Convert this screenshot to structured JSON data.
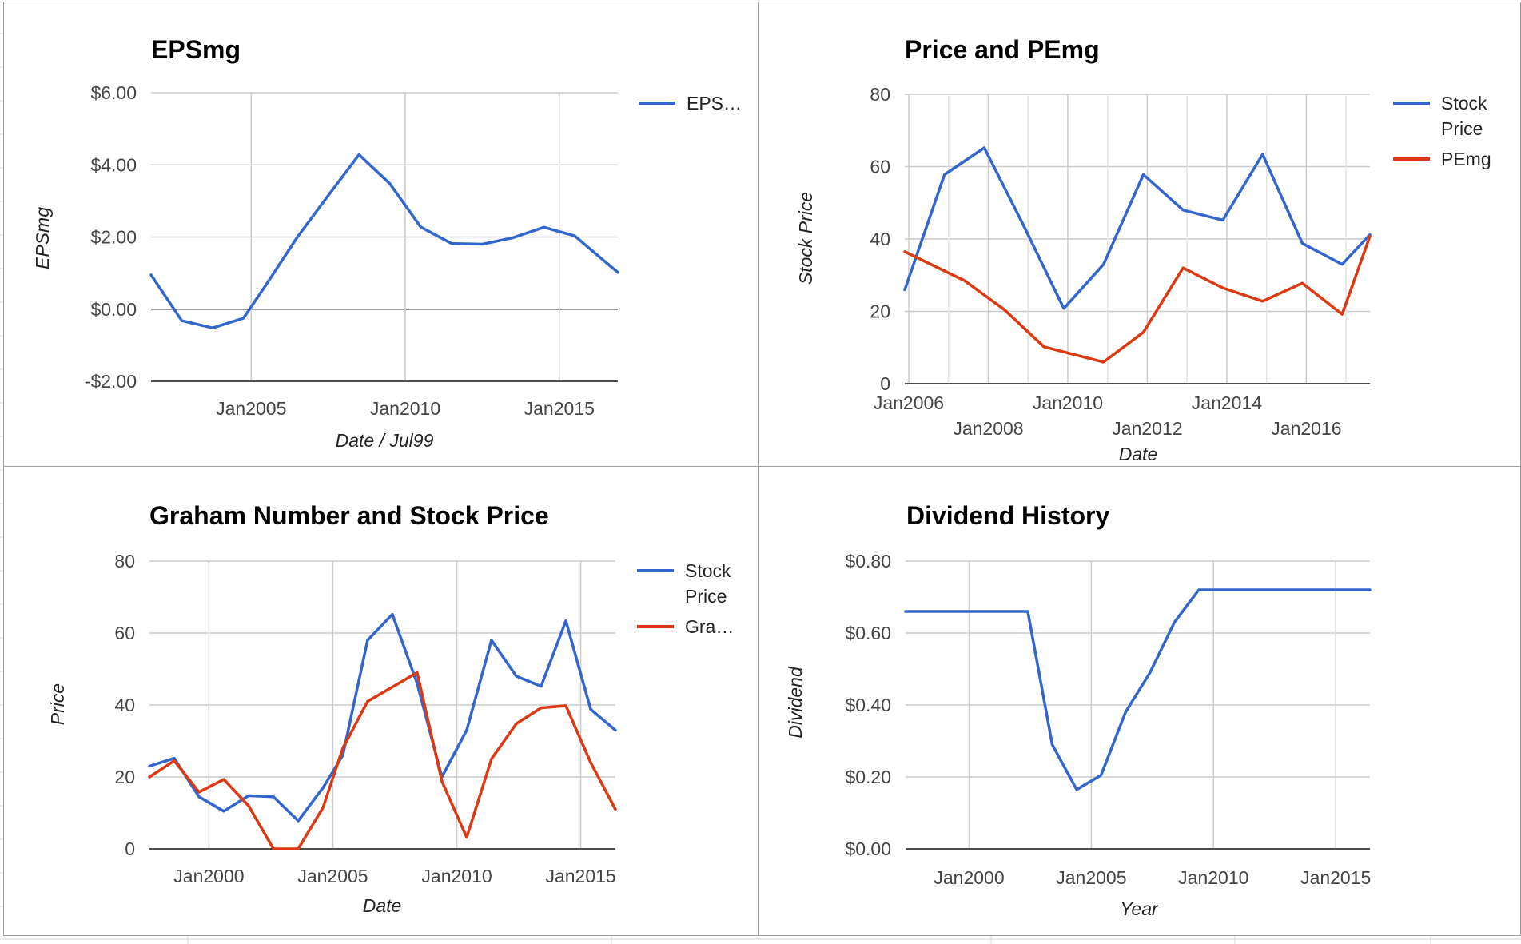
{
  "colors": {
    "blue": "#3366cc",
    "red": "#dc3912",
    "grid": "#cccccc",
    "baseline": "#333333"
  },
  "chart_data": [
    {
      "id": "epsmg",
      "type": "line",
      "title": "EPSmg",
      "xlabel": "Date / Jul99",
      "ylabel": "EPSmg",
      "xlim": [
        2001.75,
        2016.9
      ],
      "ylim": [
        -2,
        6
      ],
      "yticks": [
        -2,
        0,
        2,
        4,
        6
      ],
      "ytick_labels": [
        "-$2.00",
        "$0.00",
        "$2.00",
        "$4.00",
        "$6.00"
      ],
      "xticks": [
        {
          "label": "Jan2005",
          "value": 2005.0
        },
        {
          "label": "Jan2010",
          "value": 2010.0
        },
        {
          "label": "Jan2015",
          "value": 2015.0
        }
      ],
      "grid": true,
      "legend_position": "right",
      "series": [
        {
          "name": "EPS…",
          "color": "#3366cc",
          "x": [
            2001.75,
            2002.75,
            2003.75,
            2004.75,
            2005.5,
            2006.5,
            2007.5,
            2008.5,
            2009.5,
            2010.5,
            2011.5,
            2012.5,
            2013.5,
            2014.5,
            2015.5,
            2016.3,
            2016.9
          ],
          "y": [
            0.95,
            -0.32,
            -0.52,
            -0.25,
            0.7,
            2.0,
            3.15,
            4.28,
            3.48,
            2.28,
            1.82,
            1.8,
            1.98,
            2.27,
            2.03,
            1.45,
            1.02
          ]
        }
      ]
    },
    {
      "id": "price-pemg",
      "type": "line",
      "title": "Price and PEmg",
      "xlabel": "Date",
      "ylabel": "Stock Price",
      "xlim": [
        2005.9,
        2017.6
      ],
      "ylim": [
        0,
        80
      ],
      "yticks": [
        0,
        20,
        40,
        60,
        80
      ],
      "ytick_labels": [
        "0",
        "20",
        "40",
        "60",
        "80"
      ],
      "xticks": [
        {
          "label": "Jan2006",
          "value": 2006.0,
          "row": 0
        },
        {
          "label": "Jan2008",
          "value": 2008.0,
          "row": 1
        },
        {
          "label": "Jan2010",
          "value": 2010.0,
          "row": 0
        },
        {
          "label": "Jan2012",
          "value": 2012.0,
          "row": 1
        },
        {
          "label": "Jan2014",
          "value": 2014.0,
          "row": 0
        },
        {
          "label": "Jan2016",
          "value": 2016.0,
          "row": 1
        }
      ],
      "grid": true,
      "legend_position": "right",
      "series": [
        {
          "name": "Stock Price",
          "name_lines": [
            "Stock",
            "Price"
          ],
          "color": "#3366cc",
          "x": [
            2005.9,
            2006.9,
            2007.9,
            2008.9,
            2009.9,
            2010.9,
            2011.9,
            2012.9,
            2013.9,
            2014.9,
            2015.9,
            2016.9,
            2017.6
          ],
          "y": [
            26,
            57.8,
            65.2,
            43.5,
            20.8,
            33,
            57.8,
            48,
            45.2,
            63.4,
            38.8,
            33,
            41.2
          ]
        },
        {
          "name": "PEmg",
          "name_lines": [
            "PEmg"
          ],
          "color": "#dc3912",
          "x": [
            2005.9,
            2007.4,
            2008.4,
            2009.4,
            2010.9,
            2011.9,
            2012.9,
            2013.9,
            2014.9,
            2015.9,
            2016.9,
            2017.6
          ],
          "y": [
            36.5,
            28.5,
            20.5,
            10.2,
            6,
            14.2,
            32,
            26.5,
            22.8,
            27.8,
            19.2,
            40.8
          ]
        }
      ]
    },
    {
      "id": "graham",
      "type": "line",
      "title": "Graham Number and Stock Price",
      "xlabel": "Date",
      "ylabel": "Price",
      "xlim": [
        1997.6,
        2016.4
      ],
      "ylim": [
        0,
        80
      ],
      "yticks": [
        0,
        20,
        40,
        60,
        80
      ],
      "ytick_labels": [
        "0",
        "20",
        "40",
        "60",
        "80"
      ],
      "xticks": [
        {
          "label": "Jan2000",
          "value": 2000.0
        },
        {
          "label": "Jan2005",
          "value": 2005.0
        },
        {
          "label": "Jan2010",
          "value": 2010.0
        },
        {
          "label": "Jan2015",
          "value": 2015.0
        }
      ],
      "grid": true,
      "legend_position": "right",
      "series": [
        {
          "name": "Stock Price",
          "name_lines": [
            "Stock",
            "Price"
          ],
          "color": "#3366cc",
          "x": [
            1997.6,
            1998.6,
            1999.6,
            2000.6,
            2001.6,
            2002.6,
            2003.6,
            2004.6,
            2005.4,
            2006.4,
            2007.4,
            2008.4,
            2009.4,
            2010.4,
            2011.4,
            2012.4,
            2013.4,
            2014.4,
            2015.4,
            2016.4
          ],
          "y": [
            23,
            25.2,
            14.5,
            10.5,
            14.8,
            14.5,
            7.8,
            17,
            26,
            58,
            65.2,
            46,
            20,
            33,
            58,
            48,
            45.2,
            63.4,
            38.8,
            33
          ]
        },
        {
          "name": "Gra…",
          "name_lines": [
            "Gra…"
          ],
          "color": "#dc3912",
          "x": [
            1997.6,
            1998.6,
            1999.6,
            2000.6,
            2001.6,
            2002.6,
            2003.6,
            2004.6,
            2005.4,
            2006.4,
            2007.4,
            2008.4,
            2009.4,
            2010.4,
            2011.4,
            2012.4,
            2013.4,
            2014.4,
            2015.4,
            2016.4
          ],
          "y": [
            20,
            24.5,
            15.8,
            19.3,
            12,
            0,
            0,
            11.5,
            28,
            41,
            45,
            49,
            18.8,
            3.2,
            25,
            34.8,
            39.2,
            39.8,
            24,
            11
          ]
        }
      ]
    },
    {
      "id": "dividend",
      "type": "line",
      "title": "Dividend History",
      "xlabel": "Year",
      "ylabel": "Dividend",
      "xlim": [
        1997.4,
        2016.4
      ],
      "ylim": [
        0,
        0.8
      ],
      "yticks": [
        0,
        0.2,
        0.4,
        0.6,
        0.8
      ],
      "ytick_labels": [
        "$0.00",
        "$0.20",
        "$0.40",
        "$0.60",
        "$0.80"
      ],
      "xticks": [
        {
          "label": "Jan2000",
          "value": 2000.0
        },
        {
          "label": "Jan2005",
          "value": 2005.0
        },
        {
          "label": "Jan2010",
          "value": 2010.0
        },
        {
          "label": "Jan2015",
          "value": 2015.0
        }
      ],
      "grid": true,
      "legend_position": "none",
      "series": [
        {
          "name": "",
          "color": "#3366cc",
          "x": [
            1997.4,
            1998.4,
            1999.4,
            2000.4,
            2001.4,
            2002.4,
            2003.4,
            2004.4,
            2005.4,
            2006.4,
            2007.4,
            2008.4,
            2009.4,
            2010.4,
            2011.4,
            2012.4,
            2013.4,
            2014.4,
            2015.4,
            2016.4
          ],
          "y": [
            0.66,
            0.66,
            0.66,
            0.66,
            0.66,
            0.66,
            0.29,
            0.165,
            0.205,
            0.38,
            0.49,
            0.63,
            0.72,
            0.72,
            0.72,
            0.72,
            0.72,
            0.72,
            0.72,
            0.72
          ]
        }
      ]
    }
  ]
}
